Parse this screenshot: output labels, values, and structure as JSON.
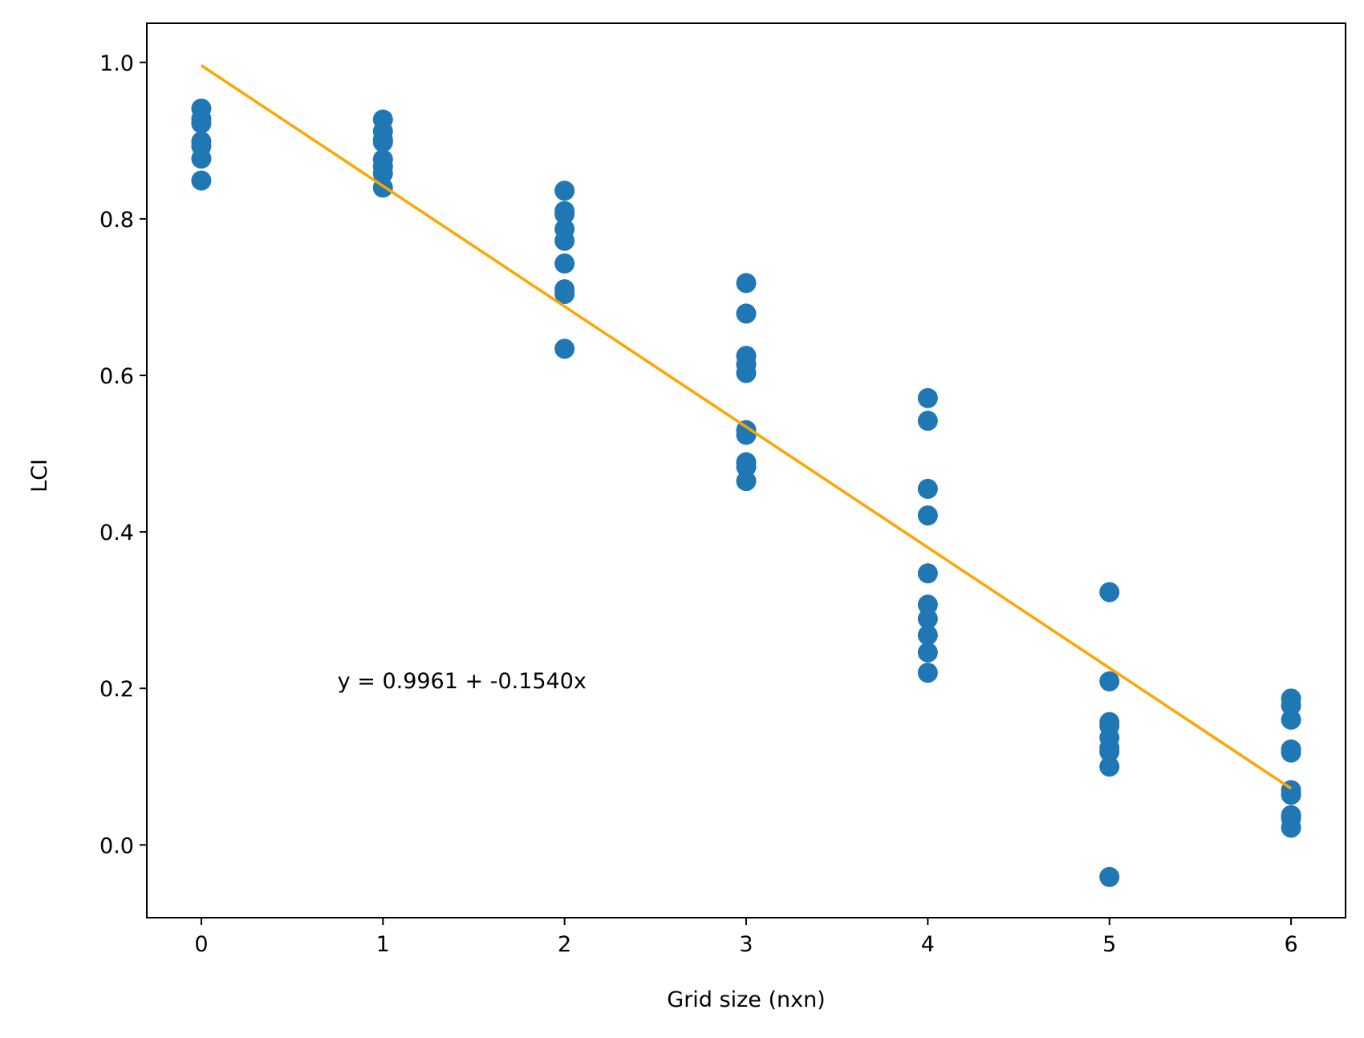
{
  "chart_data": {
    "type": "scatter",
    "title": "",
    "xlabel": "Grid size (nxn)",
    "ylabel": "LCI",
    "xlim": [
      -0.3,
      6.3
    ],
    "ylim": [
      -0.093,
      1.05
    ],
    "xticks": [
      0,
      1,
      2,
      3,
      4,
      5,
      6
    ],
    "xtick_labels": [
      "0",
      "1",
      "2",
      "3",
      "4",
      "5",
      "6"
    ],
    "yticks": [
      0.0,
      0.2,
      0.4,
      0.6,
      0.8,
      1.0
    ],
    "ytick_labels": [
      "0.0",
      "0.2",
      "0.4",
      "0.6",
      "0.8",
      "1.0"
    ],
    "grid": false,
    "series": [
      {
        "type": "scatter",
        "color": "#1f77b4",
        "points": [
          [
            0,
            0.941
          ],
          [
            0,
            0.928
          ],
          [
            0,
            0.922
          ],
          [
            0,
            0.899
          ],
          [
            0,
            0.893
          ],
          [
            0,
            0.877
          ],
          [
            0,
            0.849
          ],
          [
            1,
            0.927
          ],
          [
            1,
            0.912
          ],
          [
            1,
            0.901
          ],
          [
            1,
            0.898
          ],
          [
            1,
            0.876
          ],
          [
            1,
            0.867
          ],
          [
            1,
            0.858
          ],
          [
            1,
            0.84
          ],
          [
            2,
            0.836
          ],
          [
            2,
            0.81
          ],
          [
            2,
            0.806
          ],
          [
            2,
            0.787
          ],
          [
            2,
            0.772
          ],
          [
            2,
            0.743
          ],
          [
            2,
            0.71
          ],
          [
            2,
            0.704
          ],
          [
            2,
            0.634
          ],
          [
            3,
            0.718
          ],
          [
            3,
            0.679
          ],
          [
            3,
            0.625
          ],
          [
            3,
            0.614
          ],
          [
            3,
            0.603
          ],
          [
            3,
            0.53
          ],
          [
            3,
            0.524
          ],
          [
            3,
            0.489
          ],
          [
            3,
            0.483
          ],
          [
            3,
            0.465
          ],
          [
            4,
            0.571
          ],
          [
            4,
            0.542
          ],
          [
            4,
            0.455
          ],
          [
            4,
            0.421
          ],
          [
            4,
            0.347
          ],
          [
            4,
            0.307
          ],
          [
            4,
            0.289
          ],
          [
            4,
            0.268
          ],
          [
            4,
            0.246
          ],
          [
            4,
            0.22
          ],
          [
            5,
            0.323
          ],
          [
            5,
            0.209
          ],
          [
            5,
            0.157
          ],
          [
            5,
            0.152
          ],
          [
            5,
            0.137
          ],
          [
            5,
            0.124
          ],
          [
            5,
            0.119
          ],
          [
            5,
            0.1
          ],
          [
            5,
            -0.041
          ],
          [
            6,
            0.187
          ],
          [
            6,
            0.178
          ],
          [
            6,
            0.16
          ],
          [
            6,
            0.122
          ],
          [
            6,
            0.118
          ],
          [
            6,
            0.07
          ],
          [
            6,
            0.064
          ],
          [
            6,
            0.038
          ],
          [
            6,
            0.034
          ],
          [
            6,
            0.022
          ]
        ]
      },
      {
        "type": "line",
        "color": "#ffa500",
        "intercept": 0.9961,
        "slope": -0.154,
        "x_range": [
          0,
          6
        ]
      }
    ],
    "annotations": [
      {
        "text": "y = 0.9961 + -0.1540x",
        "x": 0.75,
        "y": 0.2
      }
    ]
  }
}
